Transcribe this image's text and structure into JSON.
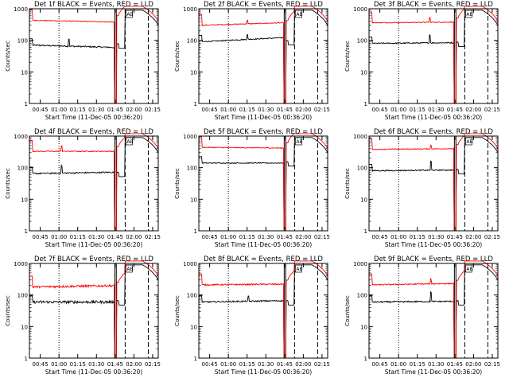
{
  "common": {
    "ylabel": "Counts/sec",
    "xlabel": "Start Time (11-Dec-05 00:36:20)",
    "yscale": "log",
    "ylim": [
      1,
      1000
    ],
    "yticks": [
      "1",
      "10",
      "100",
      "1000"
    ],
    "xlim_minutes": [
      36.33,
      139.5
    ],
    "xticks": [
      "00:45",
      "01:00",
      "01:15",
      "01:30",
      "01:45",
      "02:00",
      "02:15"
    ],
    "colors": {
      "events": "#000000",
      "lld": "#ff0000",
      "axes": "#000000"
    },
    "markers": {
      "dotted": 60.0,
      "solid": [
        104.7,
        105.9
      ],
      "dashed_1": 113.0,
      "dashed_2": 131.5,
      "flare_box_label": "AB"
    }
  },
  "chart_data": [
    {
      "type": "line",
      "title": "Det 1f BLACK = Events, RED = LLD",
      "series": [
        {
          "name": "Events",
          "color": "#000000",
          "level": 70,
          "noise": 0.05,
          "drift": [
            1.0,
            0.85
          ],
          "spike": {
            "x": 68,
            "mult": 1.7
          }
        },
        {
          "name": "LLD",
          "color": "#ff0000",
          "level": 430,
          "noise": 0.03,
          "drift": [
            1.0,
            0.88
          ],
          "spike": null
        }
      ]
    },
    {
      "type": "line",
      "title": "Det 2f BLACK = Events, RED = LLD",
      "series": [
        {
          "name": "Events",
          "color": "#000000",
          "level": 90,
          "noise": 0.04,
          "drift": [
            1.0,
            1.35
          ],
          "spike": {
            "x": 75,
            "mult": 1.4
          }
        },
        {
          "name": "LLD",
          "color": "#ff0000",
          "level": 300,
          "noise": 0.03,
          "drift": [
            1.0,
            1.2
          ],
          "spike": {
            "x": 75,
            "mult": 1.3
          }
        }
      ]
    },
    {
      "type": "line",
      "title": "Det 3f BLACK = Events, RED = LLD",
      "series": [
        {
          "name": "Events",
          "color": "#000000",
          "level": 80,
          "noise": 0.04,
          "drift": [
            1.0,
            1.05
          ],
          "spike": {
            "x": 85,
            "mult": 1.8
          }
        },
        {
          "name": "LLD",
          "color": "#ff0000",
          "level": 360,
          "noise": 0.03,
          "drift": [
            1.0,
            1.05
          ],
          "spike": {
            "x": 85,
            "mult": 1.4
          }
        }
      ]
    },
    {
      "type": "line",
      "title": "Det 4f BLACK = Events, RED = LLD",
      "series": [
        {
          "name": "Events",
          "color": "#000000",
          "level": 65,
          "noise": 0.05,
          "drift": [
            1.0,
            1.1
          ],
          "spike": {
            "x": 62,
            "mult": 1.7
          }
        },
        {
          "name": "LLD",
          "color": "#ff0000",
          "level": 330,
          "noise": 0.03,
          "drift": [
            1.0,
            1.0
          ],
          "spike": {
            "x": 62,
            "mult": 1.5
          }
        }
      ]
    },
    {
      "type": "line",
      "title": "Det 5f BLACK = Events, RED = LLD",
      "series": [
        {
          "name": "Events",
          "color": "#000000",
          "level": 140,
          "noise": 0.03,
          "drift": [
            1.0,
            1.0
          ],
          "spike": null
        },
        {
          "name": "LLD",
          "color": "#ff0000",
          "level": 440,
          "noise": 0.03,
          "drift": [
            1.0,
            0.95
          ],
          "spike": null
        }
      ]
    },
    {
      "type": "line",
      "title": "Det 6f BLACK = Events, RED = LLD",
      "series": [
        {
          "name": "Events",
          "color": "#000000",
          "level": 80,
          "noise": 0.04,
          "drift": [
            1.0,
            1.05
          ],
          "spike": {
            "x": 86,
            "mult": 1.9
          }
        },
        {
          "name": "LLD",
          "color": "#ff0000",
          "level": 380,
          "noise": 0.03,
          "drift": [
            1.0,
            1.05
          ],
          "spike": {
            "x": 86,
            "mult": 1.3
          }
        }
      ]
    },
    {
      "type": "line",
      "title": "Det 7f BLACK = Events, RED = LLD",
      "series": [
        {
          "name": "Events",
          "color": "#000000",
          "level": 60,
          "noise": 0.1,
          "drift": [
            1.0,
            1.0
          ],
          "spike": null
        },
        {
          "name": "LLD",
          "color": "#ff0000",
          "level": 180,
          "noise": 0.08,
          "drift": [
            1.0,
            1.1
          ],
          "spike": null
        }
      ]
    },
    {
      "type": "line",
      "title": "Det 8f BLACK = Events, RED = LLD",
      "series": [
        {
          "name": "Events",
          "color": "#000000",
          "level": 60,
          "noise": 0.05,
          "drift": [
            1.0,
            1.1
          ],
          "spike": {
            "x": 76,
            "mult": 1.4
          }
        },
        {
          "name": "LLD",
          "color": "#ff0000",
          "level": 210,
          "noise": 0.05,
          "drift": [
            1.0,
            1.05
          ],
          "spike": null
        }
      ]
    },
    {
      "type": "line",
      "title": "Det 9f BLACK = Events, RED = LLD",
      "series": [
        {
          "name": "Events",
          "color": "#000000",
          "level": 60,
          "noise": 0.05,
          "drift": [
            1.0,
            1.05
          ],
          "spike": {
            "x": 86,
            "mult": 2.0
          }
        },
        {
          "name": "LLD",
          "color": "#ff0000",
          "level": 210,
          "noise": 0.04,
          "drift": [
            1.0,
            1.1
          ],
          "spike": {
            "x": 86,
            "mult": 1.4
          }
        }
      ]
    }
  ]
}
